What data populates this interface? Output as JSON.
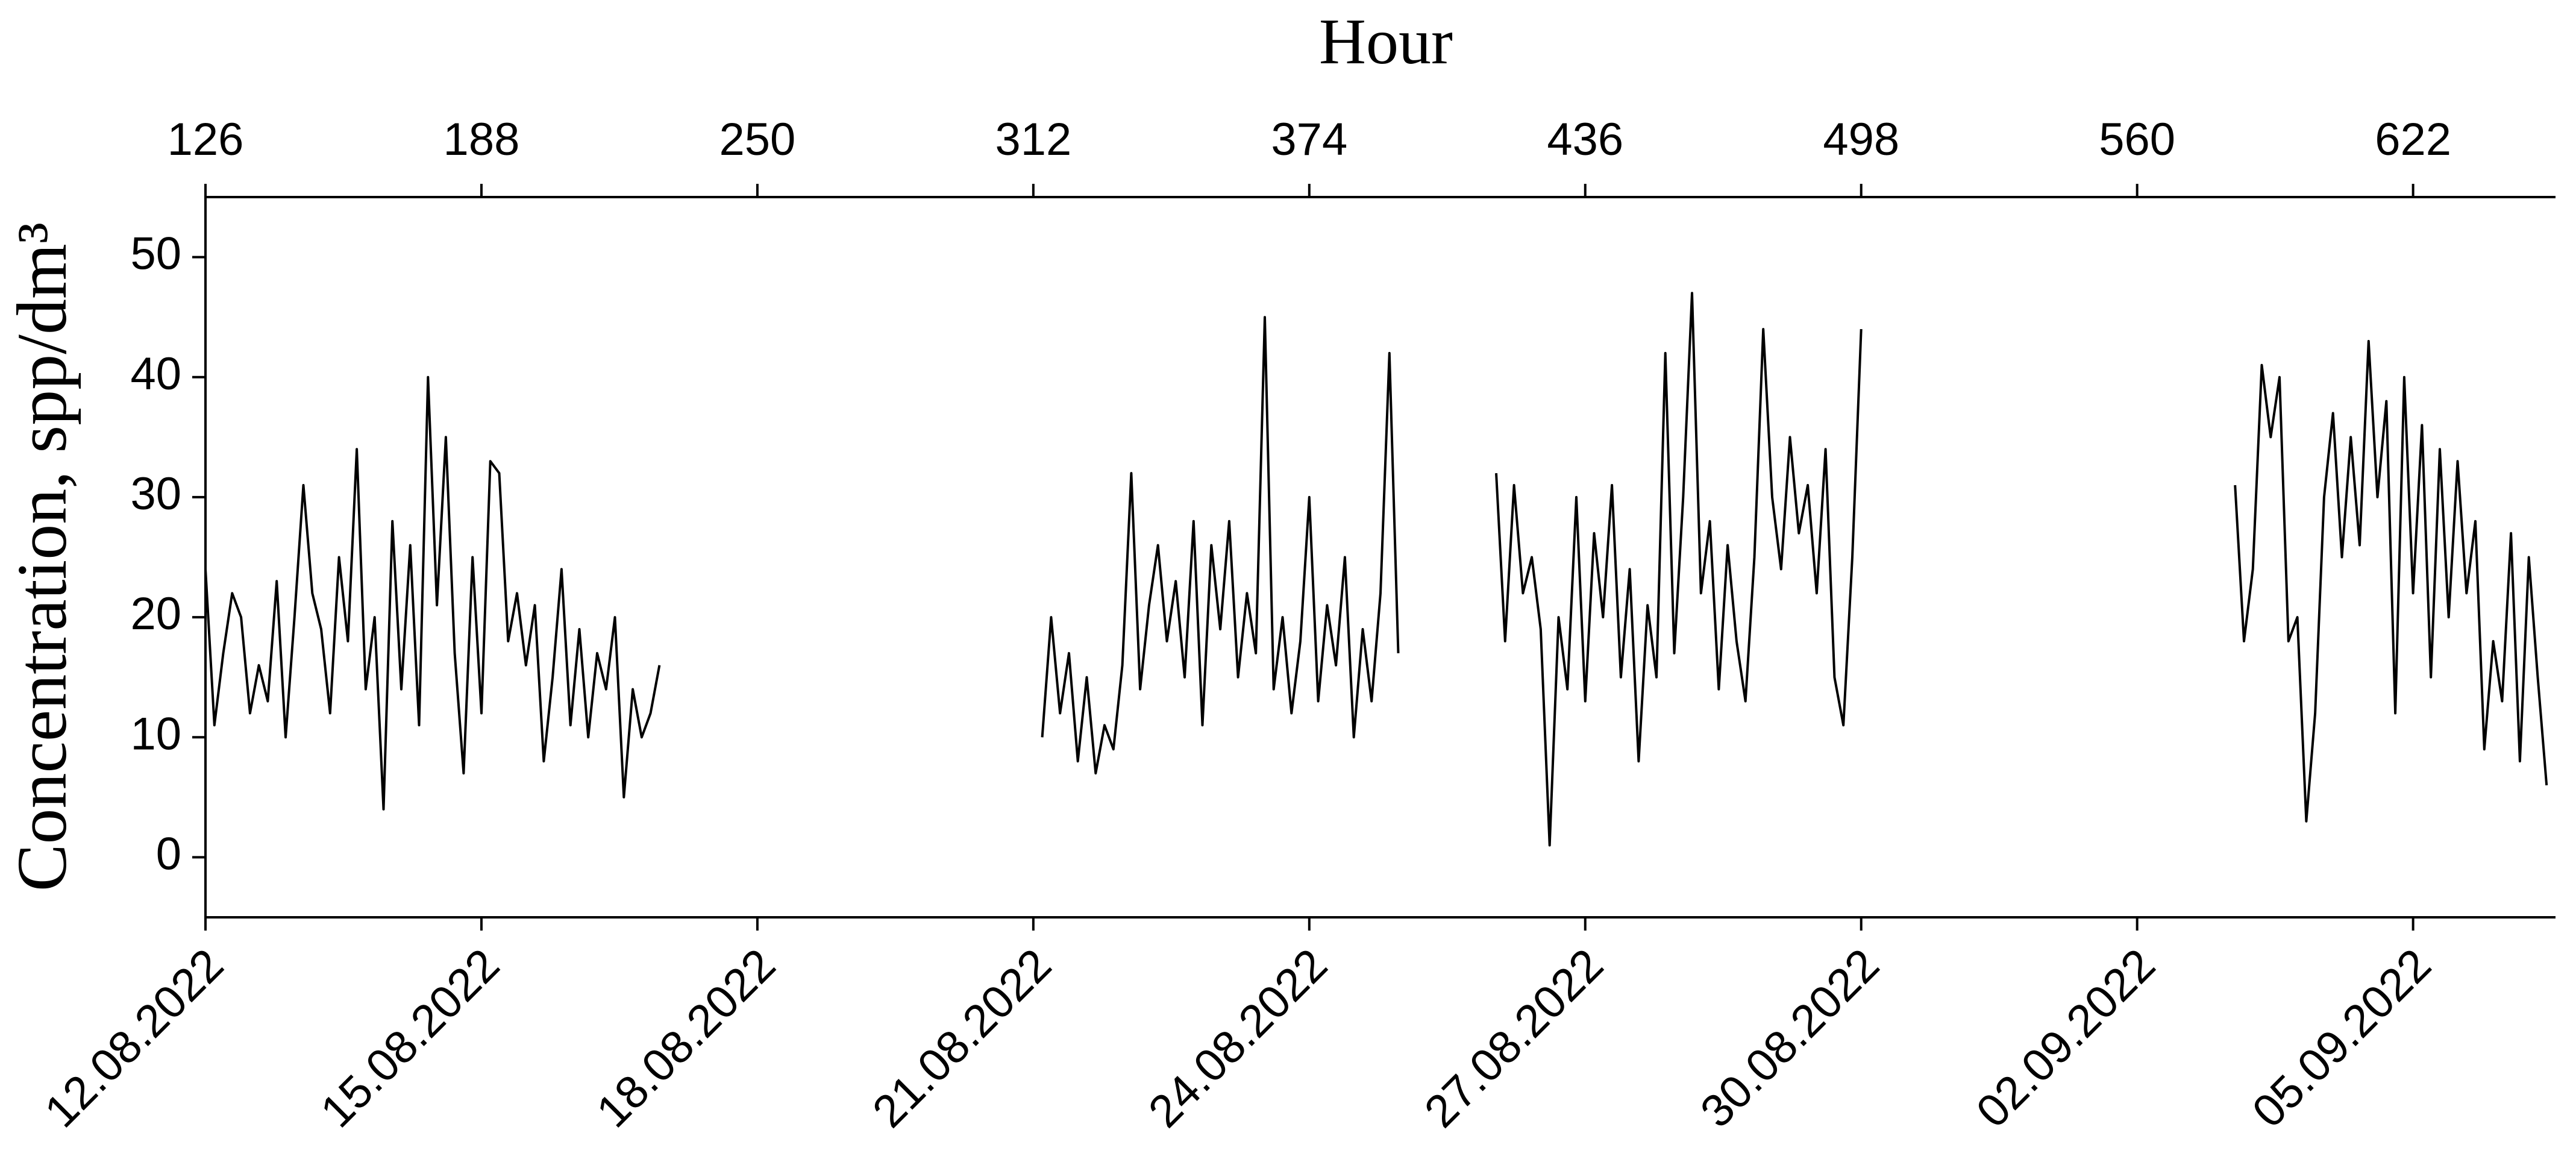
{
  "chart_data": {
    "type": "line",
    "x2label": "Hour",
    "ylabel": "Concentration, spp/dm³",
    "color": "#000000",
    "xlim": [
      126,
      654
    ],
    "ylim": [
      -5,
      55
    ],
    "yticks": [
      0,
      10,
      20,
      30,
      40,
      50
    ],
    "xticks": [
      {
        "value": 126,
        "label": "12.08.2022"
      },
      {
        "value": 188,
        "label": "15.08.2022"
      },
      {
        "value": 250,
        "label": "18.08.2022"
      },
      {
        "value": 312,
        "label": "21.08.2022"
      },
      {
        "value": 374,
        "label": "24.08.2022"
      },
      {
        "value": 436,
        "label": "27.08.2022"
      },
      {
        "value": 498,
        "label": "30.08.2022"
      },
      {
        "value": 560,
        "label": "02.09.2022"
      },
      {
        "value": 622,
        "label": "05.09.2022"
      }
    ],
    "x2ticks": [
      126,
      188,
      250,
      312,
      374,
      436,
      498,
      560,
      622
    ],
    "x": [
      126,
      128,
      130,
      132,
      134,
      136,
      138,
      140,
      142,
      144,
      146,
      148,
      150,
      152,
      154,
      156,
      158,
      160,
      162,
      164,
      166,
      168,
      170,
      172,
      174,
      176,
      178,
      180,
      182,
      184,
      186,
      188,
      190,
      192,
      194,
      196,
      198,
      200,
      202,
      204,
      206,
      208,
      210,
      212,
      214,
      216,
      218,
      220,
      222,
      224,
      226,
      228,
      270,
      314,
      316,
      318,
      320,
      322,
      324,
      326,
      328,
      330,
      332,
      334,
      336,
      338,
      340,
      342,
      344,
      346,
      348,
      350,
      352,
      354,
      356,
      358,
      360,
      362,
      364,
      366,
      368,
      370,
      372,
      374,
      376,
      378,
      380,
      382,
      384,
      386,
      388,
      390,
      392,
      394,
      405,
      416,
      418,
      420,
      422,
      424,
      426,
      428,
      430,
      432,
      434,
      436,
      438,
      440,
      442,
      444,
      446,
      448,
      450,
      452,
      454,
      456,
      458,
      460,
      462,
      464,
      466,
      468,
      470,
      472,
      474,
      476,
      478,
      480,
      482,
      484,
      486,
      488,
      490,
      492,
      494,
      496,
      498,
      540,
      582,
      584,
      586,
      588,
      590,
      592,
      594,
      596,
      598,
      600,
      602,
      604,
      606,
      608,
      610,
      612,
      614,
      616,
      618,
      620,
      622,
      624,
      626,
      628,
      630,
      632,
      634,
      636,
      638,
      640,
      642,
      644,
      646,
      648,
      650,
      652
    ],
    "values": [
      24,
      11,
      17,
      22,
      20,
      12,
      16,
      13,
      23,
      10,
      20,
      31,
      22,
      19,
      12,
      25,
      18,
      34,
      14,
      20,
      4,
      28,
      14,
      26,
      11,
      40,
      21,
      35,
      17,
      7,
      25,
      12,
      33,
      32,
      18,
      22,
      16,
      21,
      8,
      15,
      24,
      11,
      19,
      10,
      17,
      14,
      20,
      5,
      14,
      10,
      12,
      16,
      null,
      10,
      20,
      12,
      17,
      8,
      15,
      7,
      11,
      9,
      16,
      32,
      14,
      21,
      26,
      18,
      23,
      15,
      28,
      11,
      26,
      19,
      28,
      15,
      22,
      17,
      45,
      14,
      20,
      12,
      18,
      30,
      13,
      21,
      16,
      25,
      10,
      19,
      13,
      22,
      42,
      17,
      null,
      32,
      18,
      31,
      22,
      25,
      19,
      1,
      20,
      14,
      30,
      13,
      27,
      20,
      31,
      15,
      24,
      8,
      21,
      15,
      42,
      17,
      30,
      47,
      22,
      28,
      14,
      26,
      18,
      13,
      25,
      44,
      30,
      24,
      35,
      27,
      31,
      22,
      34,
      15,
      11,
      25,
      44,
      null,
      31,
      18,
      24,
      41,
      35,
      40,
      18,
      20,
      3,
      12,
      30,
      37,
      25,
      35,
      26,
      43,
      30,
      38,
      12,
      40,
      22,
      36,
      15,
      34,
      20,
      33,
      22,
      28,
      9,
      18,
      13,
      27,
      8,
      25,
      15,
      6
    ]
  }
}
